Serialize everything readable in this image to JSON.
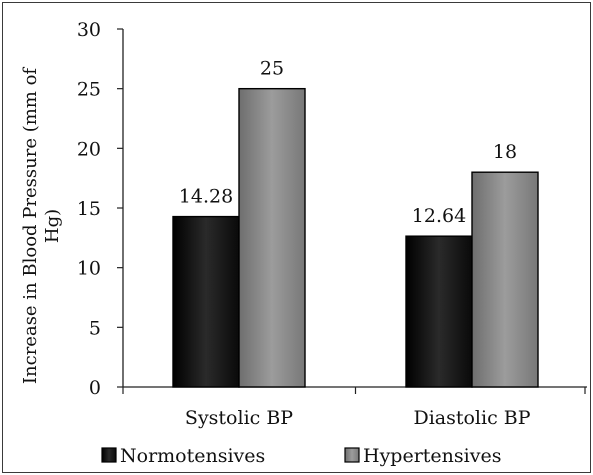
{
  "chart_data": {
    "type": "bar",
    "categories": [
      "Systolic BP",
      "Diastolic BP"
    ],
    "series": [
      {
        "name": "Normotensives",
        "values": [
          14.28,
          12.64
        ],
        "value_labels": [
          "14.28",
          "12.64"
        ],
        "color": "#1a1a1a"
      },
      {
        "name": "Hypertensives",
        "values": [
          25,
          18
        ],
        "value_labels": [
          "25",
          "18"
        ],
        "color": "#8a8a8a"
      }
    ],
    "ylabel": "Increase in Blood Pressure (mm of Hg)",
    "ylabel_lines": [
      "Increase in Blood Pressure (mm of",
      "Hg)"
    ],
    "ylim": [
      0,
      30
    ],
    "yticks": [
      0,
      5,
      10,
      15,
      20,
      25,
      30
    ],
    "ytick_labels": [
      "0",
      "5",
      "10",
      "15",
      "20",
      "25",
      "30"
    ],
    "grid": false,
    "legend_position": "bottom"
  }
}
